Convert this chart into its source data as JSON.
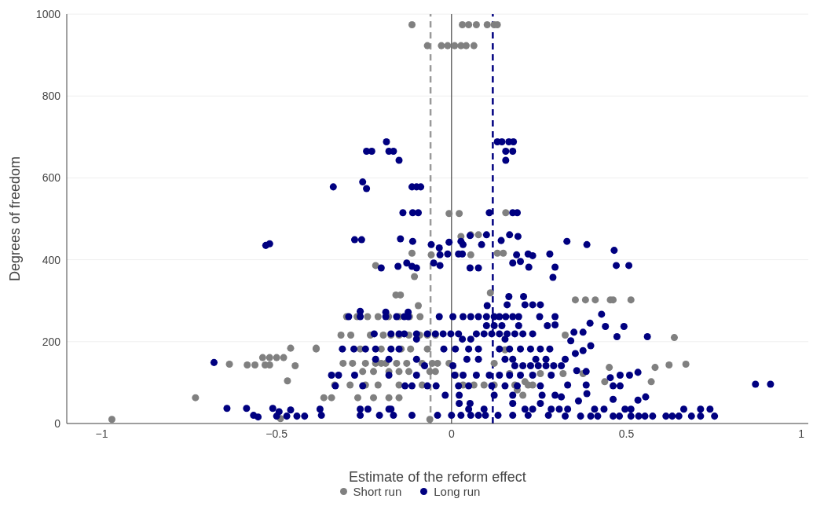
{
  "chart_data": {
    "type": "scatter",
    "xlabel": "Estimate of the reform effect",
    "ylabel": "Degrees of freedom",
    "xlim": [
      -1.1,
      1.02
    ],
    "xticks": [
      {
        "value": -1,
        "label": "−1"
      },
      {
        "value": -0.5,
        "label": "−0.5"
      },
      0,
      0.5,
      1
    ],
    "ylim": [
      0,
      1000
    ],
    "yticks": [
      0,
      200,
      400,
      600,
      800,
      1000
    ],
    "grid": "y",
    "legend": "bottom",
    "marker": "circle",
    "ref_lines": [
      {
        "axis": "x",
        "value": 0,
        "color": "#444444",
        "line_style": "solid"
      },
      {
        "axis": "x",
        "value": -0.06,
        "color": "#999999",
        "line_style": "dashed"
      },
      {
        "axis": "x",
        "value": 0.118,
        "color": "#000080",
        "line_style": "dashed"
      }
    ],
    "series": [
      {
        "name": "Short run",
        "color": "#808080",
        "x": [
          -0.113,
          0.031,
          0.049,
          0.071,
          0.102,
          0.122,
          0.131,
          -0.069,
          -0.029,
          -0.011,
          0.009,
          0.027,
          0.042,
          0.064,
          -0.007,
          0.022,
          0.155,
          -0.732,
          -0.971,
          -0.54,
          -0.52,
          -0.5,
          -0.48,
          -0.46,
          -0.635,
          -0.584,
          -0.562,
          -0.533,
          -0.52,
          -0.447,
          -0.469,
          -0.387,
          -0.489,
          -0.113,
          -0.058,
          -0.217,
          -0.106,
          -0.159,
          -0.146,
          -0.095,
          0.027,
          0.055,
          0.077,
          0.131,
          0.148,
          0.111,
          0.055,
          -0.3,
          -0.27,
          -0.24,
          -0.21,
          -0.18,
          -0.15,
          -0.12,
          -0.09,
          -0.316,
          -0.288,
          -0.232,
          -0.195,
          -0.173,
          -0.15,
          -0.122,
          -0.091,
          -0.069,
          -0.046,
          -0.387,
          -0.261,
          -0.201,
          -0.144,
          -0.117,
          -0.069,
          -0.31,
          -0.283,
          -0.246,
          -0.217,
          -0.201,
          -0.188,
          -0.157,
          -0.128,
          -0.084,
          -0.055,
          -0.04,
          -0.254,
          -0.223,
          -0.179,
          -0.15,
          -0.122,
          -0.062,
          -0.046,
          -0.334,
          -0.29,
          -0.246,
          -0.21,
          -0.15,
          -0.084,
          0.033,
          0.064,
          0.093,
          0.122,
          0.181,
          0.219,
          0.232,
          -0.365,
          -0.343,
          -0.268,
          -0.223,
          -0.179,
          -0.15,
          0.122,
          0.166,
          0.21,
          0.254,
          0.153,
          0.188,
          0.204,
          -0.062,
          -0.007,
          0.011,
          0.354,
          0.383,
          0.411,
          0.454,
          0.462,
          0.513,
          0.325,
          0.637,
          0.451,
          0.582,
          0.622,
          0.67,
          0.438,
          0.571,
          0.319,
          0.376
        ],
        "values": [
          974,
          974,
          974,
          974,
          974,
          974,
          974,
          923,
          923,
          923,
          923,
          923,
          923,
          923,
          513,
          513,
          515,
          63,
          10,
          161,
          161,
          161,
          161,
          184,
          145,
          143,
          143,
          143,
          143,
          141,
          104,
          184,
          12,
          416,
          412,
          386,
          359,
          314,
          314,
          288,
          457,
          461,
          461,
          416,
          416,
          319,
          412,
          261,
          261,
          261,
          261,
          261,
          261,
          261,
          261,
          216,
          216,
          216,
          216,
          216,
          216,
          216,
          216,
          216,
          216,
          182,
          182,
          182,
          182,
          182,
          182,
          147,
          147,
          147,
          147,
          147,
          147,
          147,
          147,
          147,
          147,
          147,
          127,
          127,
          127,
          127,
          127,
          127,
          127,
          94,
          94,
          94,
          94,
          94,
          94,
          94,
          94,
          94,
          94,
          94,
          94,
          94,
          63,
          63,
          63,
          63,
          63,
          63,
          147,
          122,
          102,
          122,
          180,
          82,
          69,
          10,
          147,
          118,
          302,
          302,
          302,
          302,
          302,
          302,
          216,
          210,
          137,
          137,
          143,
          145,
          102,
          102,
          122,
          122
        ]
      },
      {
        "name": "Long run",
        "color": "#000080",
        "x": [
          -0.186,
          0.131,
          0.144,
          0.164,
          0.177,
          -0.243,
          -0.228,
          -0.179,
          -0.166,
          0.155,
          0.175,
          -0.15,
          0.155,
          -0.338,
          -0.113,
          -0.1,
          -0.088,
          -0.254,
          -0.243,
          -0.139,
          -0.111,
          -0.095,
          0.108,
          0.175,
          0.188,
          -0.531,
          -0.52,
          -0.679,
          -0.642,
          -0.586,
          -0.566,
          -0.553,
          -0.511,
          -0.493,
          -0.46,
          -0.5,
          -0.471,
          -0.442,
          -0.42,
          -0.277,
          -0.257,
          -0.146,
          -0.111,
          -0.058,
          -0.035,
          -0.007,
          0.027,
          0.033,
          0.053,
          0.1,
          0.086,
          0.142,
          0.166,
          0.19,
          -0.033,
          -0.011,
          0.02,
          0.031,
          -0.201,
          -0.153,
          -0.128,
          -0.113,
          -0.1,
          -0.051,
          -0.033,
          0.053,
          0.077,
          0.186,
          0.219,
          0.232,
          0.175,
          0.197,
          0.221,
          0.281,
          0.296,
          0.29,
          0.164,
          0.206,
          0.159,
          0.21,
          0.232,
          0.254,
          0.102,
          -0.294,
          -0.261,
          -0.188,
          -0.157,
          -0.135,
          -0.124,
          -0.261,
          -0.188,
          -0.124,
          -0.035,
          0.004,
          0.033,
          0.055,
          0.077,
          0.1,
          0.122,
          0.137,
          0.155,
          0.175,
          0.192,
          0.252,
          0.296,
          0.1,
          0.122,
          0.144,
          0.192,
          0.274,
          0.296,
          -0.221,
          -0.173,
          -0.15,
          -0.135,
          -0.1,
          -0.069,
          -0.046,
          -0.024,
          -0.002,
          0.02,
          0.071,
          0.093,
          0.115,
          0.137,
          0.159,
          0.181,
          0.204,
          0.232,
          -0.1,
          0.031,
          0.055,
          0.153,
          -0.312,
          -0.279,
          -0.246,
          -0.217,
          -0.173,
          -0.15,
          -0.022,
          0.011,
          0.049,
          0.077,
          0.137,
          0.166,
          0.197,
          0.226,
          0.254,
          0.281,
          -0.217,
          -0.179,
          -0.1,
          0.044,
          0.077,
          0.153,
          0.175,
          0.241,
          0.27,
          0.181,
          0.204,
          0.226,
          0.248,
          0.27,
          0.292,
          0.314,
          -0.077,
          0.004,
          -0.343,
          -0.323,
          -0.277,
          -0.179,
          -0.1,
          0.009,
          0.033,
          0.071,
          0.108,
          0.137,
          0.166,
          0.197,
          0.232,
          0.285,
          -0.332,
          -0.254,
          -0.133,
          -0.113,
          -0.069,
          -0.044,
          0.02,
          0.049,
          0.115,
          0.153,
          0.188,
          0.254,
          -0.018,
          0.022,
          0.122,
          0.175,
          0.259,
          0.296,
          -0.376,
          -0.261,
          -0.239,
          -0.179,
          -0.173,
          0.049,
          0.093,
          0.21,
          0.232,
          0.285,
          0.308,
          -0.372,
          -0.261,
          -0.206,
          -0.166,
          -0.113,
          -0.04,
          0,
          0.027,
          0.055,
          0.077,
          0.097,
          0.133,
          0.175,
          0.219,
          0.277,
          0.022,
          0.053,
          0.175,
          0.254,
          0.33,
          0.387,
          0.465,
          0.471,
          0.507,
          0.429,
          0.396,
          0.44,
          0.493,
          0.35,
          0.376,
          0.341,
          0.473,
          0.56,
          0.398,
          0.376,
          0.354,
          0.325,
          0.358,
          0.385,
          0.454,
          0.482,
          0.509,
          0.533,
          0.462,
          0.482,
          0.332,
          0.385,
          0.387,
          0.314,
          0.363,
          0.462,
          0.533,
          0.555,
          0.869,
          0.912,
          0.332,
          0.409,
          0.436,
          0.496,
          0.513,
          0.664,
          0.712,
          0.739,
          0.325,
          0.369,
          0.398,
          0.418,
          0.462,
          0.48,
          0.513,
          0.535,
          0.553,
          0.575,
          0.613,
          0.631,
          0.65,
          0.686,
          0.712,
          0.752
        ],
        "values": [
          688,
          688,
          688,
          688,
          688,
          665,
          665,
          665,
          665,
          665,
          665,
          643,
          643,
          578,
          578,
          578,
          578,
          590,
          574,
          515,
          515,
          515,
          515,
          515,
          515,
          435,
          439,
          149,
          37,
          37,
          20,
          16,
          37,
          29,
          33,
          18,
          18,
          18,
          18,
          449,
          449,
          451,
          445,
          437,
          429,
          443,
          445,
          437,
          459,
          461,
          437,
          447,
          461,
          457,
          412,
          414,
          414,
          414,
          380,
          384,
          392,
          384,
          380,
          392,
          386,
          380,
          380,
          412,
          414,
          410,
          392,
          396,
          382,
          414,
          382,
          357,
          310,
          310,
          290,
          290,
          290,
          290,
          288,
          261,
          261,
          261,
          261,
          261,
          261,
          274,
          272,
          272,
          261,
          261,
          261,
          261,
          261,
          261,
          261,
          261,
          261,
          261,
          261,
          261,
          261,
          239,
          239,
          239,
          239,
          239,
          241,
          219,
          219,
          219,
          219,
          219,
          219,
          219,
          219,
          219,
          219,
          219,
          219,
          219,
          219,
          219,
          219,
          219,
          219,
          206,
          206,
          206,
          206,
          182,
          182,
          182,
          182,
          182,
          182,
          182,
          182,
          182,
          182,
          182,
          182,
          182,
          182,
          182,
          182,
          157,
          157,
          157,
          157,
          157,
          157,
          157,
          157,
          157,
          141,
          141,
          141,
          141,
          141,
          141,
          141,
          141,
          141,
          118,
          118,
          118,
          118,
          118,
          118,
          118,
          118,
          118,
          118,
          118,
          118,
          118,
          118,
          92,
          92,
          92,
          92,
          92,
          92,
          92,
          92,
          92,
          92,
          92,
          92,
          69,
          69,
          69,
          69,
          69,
          69,
          35,
          35,
          35,
          35,
          35,
          35,
          35,
          35,
          35,
          35,
          35,
          20,
          20,
          20,
          20,
          20,
          20,
          20,
          20,
          20,
          20,
          20,
          20,
          20,
          20,
          20,
          49,
          49,
          49,
          49,
          445,
          437,
          423,
          386,
          386,
          267,
          245,
          237,
          237,
          223,
          223,
          202,
          212,
          212,
          190,
          178,
          171,
          157,
          129,
          127,
          112,
          118,
          118,
          125,
          92,
          92,
          94,
          94,
          73,
          65,
          55,
          59,
          57,
          65,
          96,
          96,
          35,
          35,
          35,
          35,
          35,
          35,
          35,
          35,
          18,
          18,
          18,
          18,
          18,
          18,
          18,
          18,
          18,
          18,
          18,
          18,
          18,
          18,
          18,
          18
        ]
      }
    ]
  }
}
